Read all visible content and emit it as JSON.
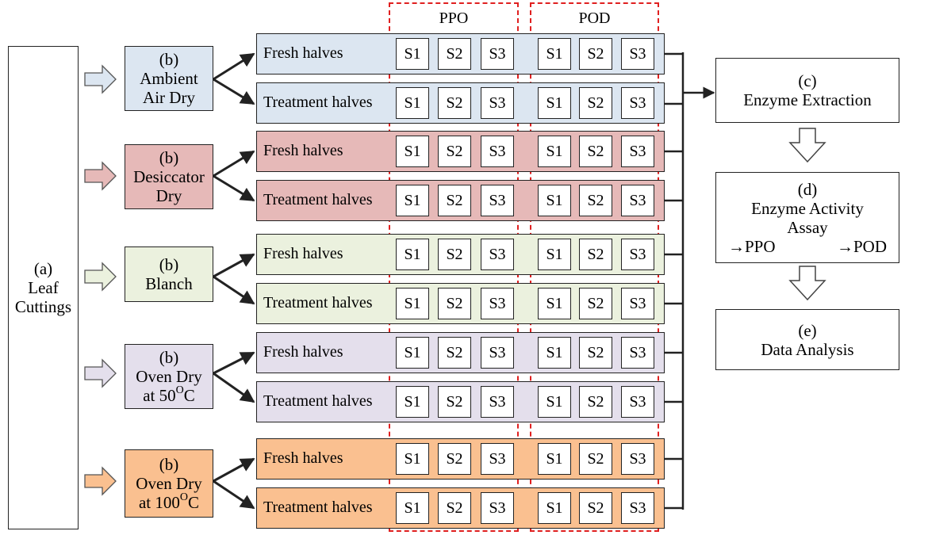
{
  "headers": {
    "ppo": "PPO",
    "pod": "POD"
  },
  "leaf": {
    "tag": "(a)",
    "line1": "Leaf",
    "line2": "Cuttings"
  },
  "treatments": [
    {
      "tag": "(b)",
      "line1": "Ambient",
      "line2": "Air Dry",
      "sup": "",
      "tail": "",
      "color": "#dce6f1"
    },
    {
      "tag": "(b)",
      "line1": "Desiccator",
      "line2": "Dry",
      "sup": "",
      "tail": "",
      "color": "#e6b9b8"
    },
    {
      "tag": "(b)",
      "line1": "Blanch",
      "line2": "",
      "sup": "",
      "tail": "",
      "color": "#ebf1de"
    },
    {
      "tag": "(b)",
      "line1": "Oven Dry",
      "line2": "at 50",
      "sup": "O",
      "tail": "C",
      "color": "#e4dfec"
    },
    {
      "tag": "(b)",
      "line1": "Oven Dry",
      "line2": "at 100",
      "sup": "O",
      "tail": "C",
      "color": "#fac090"
    }
  ],
  "row_labels": {
    "fresh": "Fresh halves",
    "treatment": "Treatment halves"
  },
  "samples": [
    "S1",
    "S2",
    "S3"
  ],
  "steps": {
    "extraction": {
      "tag": "(c)",
      "label": "Enzyme Extraction"
    },
    "assay": {
      "tag": "(d)",
      "line1": "Enzyme Activity",
      "line2": "Assay",
      "ppo": "→PPO",
      "pod": "→POD"
    },
    "analysis": {
      "tag": "(e)",
      "label": "Data Analysis"
    }
  },
  "colors": {
    "dash": "#e02020",
    "line": "#222222"
  }
}
